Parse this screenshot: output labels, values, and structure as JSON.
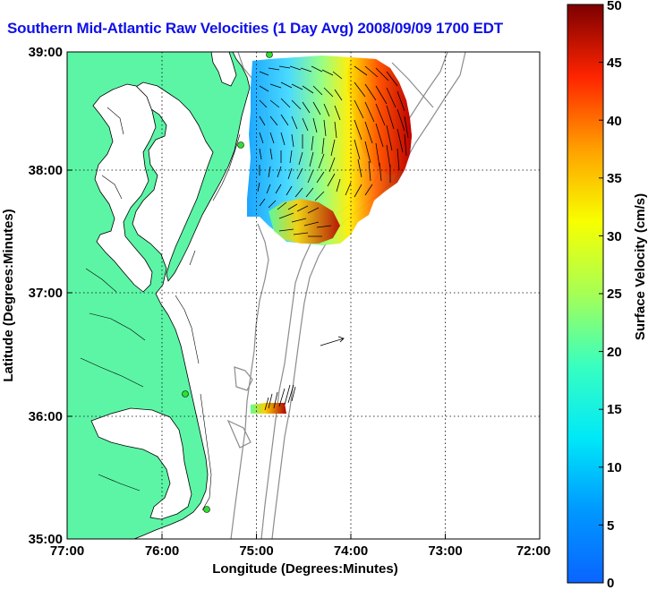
{
  "title": "Southern Mid-Atlantic Raw Velocities (1 Day Avg) 2008/09/09 1700 EDT",
  "map": {
    "xlabel": "Longitude (Degrees:Minutes)",
    "ylabel": "Latitude (Degrees:Minutes)",
    "x_ticks": [
      "77:00",
      "76:00",
      "75:00",
      "74:00",
      "73:00",
      "72:00"
    ],
    "y_ticks": [
      "39:00",
      "38:00",
      "37:00",
      "36:00",
      "35:00"
    ],
    "land_color": "#5cf5a6",
    "grid": "dotted"
  },
  "colorbar": {
    "label": "Surface Velocity (cm/s)",
    "ticks": [
      "0",
      "5",
      "10",
      "15",
      "20",
      "25",
      "30",
      "35",
      "40",
      "45",
      "50"
    ],
    "range": [
      0,
      50
    ],
    "colormap": "jet"
  }
}
